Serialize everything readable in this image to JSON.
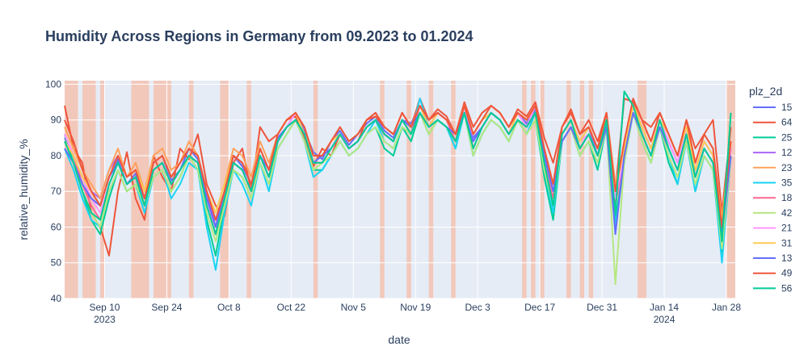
{
  "chart_data": {
    "type": "line",
    "title": "Humidity Across Regions in Germany from 09.2023 to 01.2024",
    "xlabel": "date",
    "ylabel": "relative_humidity_%",
    "xlim": [
      "2023-09-01",
      "2024-01-30"
    ],
    "ylim": [
      40,
      101
    ],
    "y_ticks": [
      40,
      50,
      60,
      70,
      80,
      90,
      100
    ],
    "x_ticks": [
      {
        "date": "2023-09-10",
        "label": "Sep 10",
        "sublabel": "2023"
      },
      {
        "date": "2023-09-24",
        "label": "Sep 24",
        "sublabel": ""
      },
      {
        "date": "2023-10-08",
        "label": "Oct 8",
        "sublabel": ""
      },
      {
        "date": "2023-10-22",
        "label": "Oct 22",
        "sublabel": ""
      },
      {
        "date": "2023-11-05",
        "label": "Nov 5",
        "sublabel": ""
      },
      {
        "date": "2023-11-19",
        "label": "Nov 19",
        "sublabel": ""
      },
      {
        "date": "2023-12-03",
        "label": "Dec 3",
        "sublabel": ""
      },
      {
        "date": "2023-12-17",
        "label": "Dec 17",
        "sublabel": ""
      },
      {
        "date": "2023-12-31",
        "label": "Dec 31",
        "sublabel": ""
      },
      {
        "date": "2024-01-14",
        "label": "Jan 14",
        "sublabel": "2024"
      },
      {
        "date": "2024-01-28",
        "label": "Jan 28",
        "sublabel": ""
      }
    ],
    "grid": true,
    "legend_title": "plz_2d",
    "legend_position": "right",
    "highlight_color": "#f5c2b0",
    "highlight_periods": [
      [
        "2023-09-01",
        "2023-09-04"
      ],
      [
        "2023-09-05",
        "2023-09-08"
      ],
      [
        "2023-09-09",
        "2023-09-10"
      ],
      [
        "2023-09-16",
        "2023-09-20"
      ],
      [
        "2023-09-21",
        "2023-09-25"
      ],
      [
        "2023-09-29",
        "2023-09-30"
      ],
      [
        "2023-10-06",
        "2023-10-08"
      ],
      [
        "2023-10-12",
        "2023-10-13"
      ],
      [
        "2023-10-27",
        "2023-10-28"
      ],
      [
        "2023-11-11",
        "2023-11-12"
      ],
      [
        "2023-11-17",
        "2023-11-18"
      ],
      [
        "2023-11-22",
        "2023-11-23"
      ],
      [
        "2023-11-27",
        "2023-11-28"
      ],
      [
        "2023-12-13",
        "2023-12-14"
      ],
      [
        "2023-12-15",
        "2023-12-16"
      ],
      [
        "2023-12-17",
        "2023-12-18"
      ],
      [
        "2023-12-23",
        "2023-12-24"
      ],
      [
        "2023-12-26",
        "2023-12-27"
      ],
      [
        "2023-12-28",
        "2023-12-29"
      ],
      [
        "2024-01-08",
        "2024-01-10"
      ],
      [
        "2024-01-28",
        "2024-01-30"
      ]
    ],
    "x": [
      "2023-09-01",
      "2023-09-03",
      "2023-09-05",
      "2023-09-07",
      "2023-09-09",
      "2023-09-11",
      "2023-09-13",
      "2023-09-15",
      "2023-09-17",
      "2023-09-19",
      "2023-09-21",
      "2023-09-23",
      "2023-09-25",
      "2023-09-27",
      "2023-09-29",
      "2023-10-01",
      "2023-10-03",
      "2023-10-05",
      "2023-10-07",
      "2023-10-09",
      "2023-10-11",
      "2023-10-13",
      "2023-10-15",
      "2023-10-17",
      "2023-10-19",
      "2023-10-21",
      "2023-10-23",
      "2023-10-25",
      "2023-10-27",
      "2023-10-29",
      "2023-10-31",
      "2023-11-02",
      "2023-11-04",
      "2023-11-06",
      "2023-11-08",
      "2023-11-10",
      "2023-11-12",
      "2023-11-14",
      "2023-11-16",
      "2023-11-18",
      "2023-11-20",
      "2023-11-22",
      "2023-11-24",
      "2023-11-26",
      "2023-11-28",
      "2023-11-30",
      "2023-12-02",
      "2023-12-04",
      "2023-12-06",
      "2023-12-08",
      "2023-12-10",
      "2023-12-12",
      "2023-12-14",
      "2023-12-16",
      "2023-12-18",
      "2023-12-20",
      "2023-12-22",
      "2023-12-24",
      "2023-12-26",
      "2023-12-28",
      "2023-12-30",
      "2024-01-01",
      "2024-01-03",
      "2024-01-05",
      "2024-01-07",
      "2024-01-09",
      "2024-01-11",
      "2024-01-13",
      "2024-01-15",
      "2024-01-17",
      "2024-01-19",
      "2024-01-21",
      "2024-01-23",
      "2024-01-25",
      "2024-01-27",
      "2024-01-29"
    ],
    "series": [
      {
        "name": "15",
        "color": "#636efa",
        "values": [
          85,
          80,
          72,
          68,
          66,
          74,
          79,
          72,
          75,
          68,
          78,
          80,
          73,
          76,
          82,
          79,
          68,
          62,
          70,
          80,
          77,
          72,
          80,
          76,
          85,
          88,
          92,
          87,
          81,
          79,
          84,
          87,
          83,
          86,
          89,
          91,
          87,
          85,
          90,
          89,
          94,
          88,
          92,
          90,
          86,
          94,
          85,
          88,
          92,
          90,
          86,
          92,
          89,
          93,
          80,
          72,
          86,
          90,
          84,
          88,
          80,
          90,
          72,
          80,
          94,
          88,
          82,
          90,
          84,
          78,
          88,
          76,
          84,
          80,
          60,
          82
        ]
      },
      {
        "name": "64",
        "color": "#EF553B",
        "values": [
          94,
          82,
          78,
          64,
          60,
          52,
          70,
          81,
          68,
          62,
          80,
          74,
          70,
          82,
          79,
          86,
          72,
          66,
          63,
          78,
          82,
          70,
          88,
          84,
          86,
          90,
          91,
          85,
          77,
          82,
          80,
          86,
          82,
          84,
          90,
          91,
          88,
          86,
          92,
          88,
          96,
          90,
          93,
          91,
          86,
          95,
          88,
          92,
          94,
          92,
          88,
          93,
          91,
          95,
          85,
          78,
          88,
          93,
          86,
          90,
          84,
          92,
          70,
          96,
          95,
          90,
          88,
          92,
          86,
          80,
          90,
          82,
          86,
          90,
          64,
          88
        ]
      },
      {
        "name": "25",
        "color": "#00cc96",
        "values": [
          86,
          78,
          70,
          62,
          58,
          68,
          76,
          70,
          72,
          66,
          74,
          76,
          70,
          74,
          80,
          76,
          62,
          52,
          66,
          76,
          74,
          68,
          78,
          72,
          82,
          86,
          90,
          84,
          76,
          76,
          80,
          84,
          80,
          82,
          86,
          88,
          82,
          80,
          88,
          84,
          92,
          86,
          90,
          88,
          82,
          92,
          80,
          86,
          90,
          88,
          84,
          90,
          86,
          90,
          74,
          62,
          84,
          88,
          80,
          84,
          76,
          88,
          62,
          78,
          92,
          84,
          78,
          88,
          78,
          72,
          84,
          70,
          80,
          76,
          52,
          80
        ]
      },
      {
        "name": "12",
        "color": "#ab63fa",
        "values": [
          84,
          80,
          74,
          70,
          68,
          76,
          80,
          74,
          76,
          70,
          78,
          80,
          74,
          78,
          82,
          80,
          70,
          60,
          70,
          80,
          78,
          72,
          82,
          76,
          84,
          88,
          92,
          86,
          80,
          80,
          82,
          86,
          82,
          84,
          88,
          90,
          86,
          84,
          90,
          88,
          94,
          88,
          92,
          90,
          86,
          94,
          84,
          88,
          92,
          90,
          86,
          92,
          88,
          92,
          80,
          70,
          86,
          90,
          84,
          86,
          80,
          90,
          70,
          80,
          94,
          88,
          82,
          90,
          84,
          78,
          88,
          76,
          84,
          80,
          60,
          82
        ]
      },
      {
        "name": "23",
        "color": "#FFA15A",
        "values": [
          88,
          82,
          76,
          72,
          68,
          76,
          82,
          74,
          78,
          70,
          80,
          82,
          76,
          78,
          84,
          80,
          70,
          64,
          72,
          82,
          80,
          74,
          84,
          78,
          86,
          90,
          92,
          88,
          80,
          80,
          84,
          88,
          84,
          86,
          90,
          92,
          88,
          86,
          92,
          88,
          94,
          90,
          92,
          90,
          86,
          94,
          86,
          90,
          94,
          92,
          88,
          92,
          90,
          94,
          82,
          72,
          88,
          92,
          86,
          88,
          82,
          92,
          72,
          82,
          94,
          90,
          84,
          92,
          86,
          80,
          90,
          78,
          86,
          82,
          62,
          84
        ]
      },
      {
        "name": "35",
        "color": "#19d3f3",
        "values": [
          82,
          76,
          68,
          62,
          60,
          70,
          76,
          70,
          72,
          64,
          74,
          76,
          68,
          72,
          78,
          76,
          60,
          48,
          64,
          76,
          72,
          66,
          78,
          70,
          82,
          86,
          90,
          84,
          74,
          76,
          80,
          84,
          80,
          82,
          86,
          90,
          84,
          82,
          88,
          86,
          96,
          88,
          90,
          88,
          82,
          92,
          80,
          86,
          90,
          88,
          84,
          90,
          86,
          92,
          76,
          64,
          84,
          88,
          80,
          84,
          78,
          88,
          60,
          78,
          92,
          84,
          78,
          88,
          80,
          72,
          84,
          70,
          80,
          76,
          50,
          80
        ]
      },
      {
        "name": "18",
        "color": "#FF6692",
        "values": [
          86,
          80,
          72,
          66,
          62,
          72,
          78,
          72,
          74,
          66,
          76,
          78,
          72,
          76,
          80,
          78,
          66,
          58,
          68,
          78,
          76,
          70,
          80,
          74,
          84,
          88,
          90,
          86,
          78,
          78,
          82,
          86,
          82,
          84,
          88,
          90,
          86,
          84,
          90,
          86,
          94,
          88,
          92,
          90,
          84,
          94,
          82,
          88,
          92,
          90,
          86,
          92,
          88,
          92,
          78,
          68,
          86,
          90,
          82,
          86,
          80,
          90,
          66,
          80,
          94,
          86,
          80,
          90,
          82,
          76,
          86,
          74,
          82,
          78,
          56,
          82
        ]
      },
      {
        "name": "42",
        "color": "#B6E880",
        "values": [
          84,
          78,
          70,
          64,
          60,
          70,
          76,
          70,
          72,
          66,
          74,
          76,
          70,
          74,
          80,
          76,
          64,
          56,
          66,
          76,
          74,
          68,
          78,
          72,
          82,
          86,
          90,
          84,
          76,
          78,
          80,
          84,
          80,
          82,
          86,
          88,
          84,
          82,
          88,
          86,
          92,
          86,
          90,
          88,
          84,
          92,
          80,
          86,
          90,
          88,
          84,
          90,
          86,
          90,
          76,
          66,
          84,
          88,
          80,
          84,
          78,
          88,
          44,
          78,
          92,
          84,
          78,
          88,
          80,
          74,
          84,
          72,
          80,
          76,
          54,
          80
        ]
      },
      {
        "name": "21",
        "color": "#FF97FF",
        "values": [
          86,
          80,
          74,
          68,
          64,
          72,
          78,
          72,
          74,
          68,
          76,
          78,
          72,
          76,
          80,
          78,
          66,
          60,
          70,
          78,
          76,
          70,
          80,
          74,
          84,
          88,
          92,
          86,
          78,
          80,
          82,
          86,
          82,
          84,
          88,
          90,
          86,
          84,
          90,
          88,
          94,
          88,
          92,
          90,
          86,
          94,
          84,
          88,
          92,
          90,
          86,
          92,
          88,
          94,
          80,
          70,
          86,
          90,
          84,
          86,
          80,
          90,
          68,
          80,
          94,
          88,
          82,
          90,
          84,
          78,
          88,
          76,
          84,
          80,
          58,
          82
        ]
      },
      {
        "name": "31",
        "color": "#FECB52",
        "values": [
          84,
          80,
          74,
          70,
          66,
          74,
          80,
          74,
          76,
          70,
          78,
          80,
          74,
          78,
          82,
          80,
          70,
          64,
          72,
          80,
          78,
          72,
          82,
          76,
          86,
          90,
          92,
          86,
          80,
          80,
          84,
          86,
          82,
          84,
          88,
          90,
          86,
          84,
          90,
          88,
          94,
          88,
          92,
          90,
          86,
          94,
          86,
          90,
          92,
          90,
          86,
          92,
          90,
          94,
          82,
          72,
          86,
          90,
          84,
          88,
          82,
          90,
          70,
          82,
          94,
          88,
          82,
          90,
          86,
          80,
          88,
          76,
          84,
          80,
          62,
          84
        ]
      },
      {
        "name": "13",
        "color": "#636efa",
        "values": [
          82,
          78,
          72,
          68,
          66,
          74,
          78,
          72,
          74,
          68,
          76,
          78,
          72,
          76,
          80,
          78,
          68,
          60,
          70,
          78,
          76,
          70,
          80,
          74,
          84,
          88,
          90,
          86,
          78,
          80,
          82,
          86,
          82,
          84,
          88,
          90,
          86,
          84,
          90,
          88,
          92,
          88,
          90,
          88,
          86,
          92,
          84,
          88,
          92,
          90,
          86,
          90,
          88,
          92,
          80,
          70,
          84,
          88,
          82,
          86,
          80,
          88,
          58,
          80,
          92,
          86,
          80,
          88,
          82,
          76,
          86,
          74,
          82,
          78,
          58,
          80
        ]
      },
      {
        "name": "49",
        "color": "#EF553B",
        "values": [
          90,
          84,
          76,
          70,
          66,
          74,
          80,
          74,
          76,
          68,
          78,
          80,
          74,
          78,
          82,
          80,
          70,
          62,
          70,
          80,
          78,
          72,
          82,
          76,
          86,
          90,
          92,
          88,
          80,
          80,
          84,
          88,
          84,
          86,
          90,
          92,
          88,
          86,
          92,
          88,
          94,
          90,
          92,
          90,
          86,
          94,
          86,
          90,
          94,
          92,
          88,
          92,
          90,
          94,
          82,
          72,
          88,
          92,
          86,
          88,
          82,
          92,
          70,
          84,
          96,
          90,
          84,
          92,
          86,
          80,
          90,
          78,
          86,
          82,
          60,
          84
        ]
      },
      {
        "name": "56",
        "color": "#00cc96",
        "values": [
          84,
          78,
          70,
          64,
          62,
          72,
          78,
          72,
          74,
          66,
          76,
          78,
          72,
          76,
          80,
          78,
          66,
          58,
          68,
          78,
          76,
          70,
          80,
          74,
          84,
          88,
          90,
          86,
          78,
          78,
          82,
          86,
          82,
          84,
          88,
          90,
          86,
          84,
          90,
          86,
          92,
          88,
          90,
          88,
          84,
          92,
          82,
          88,
          92,
          90,
          86,
          90,
          88,
          92,
          78,
          66,
          86,
          90,
          82,
          86,
          80,
          90,
          64,
          98,
          94,
          86,
          80,
          90,
          82,
          76,
          86,
          74,
          82,
          78,
          56,
          92
        ]
      }
    ]
  }
}
